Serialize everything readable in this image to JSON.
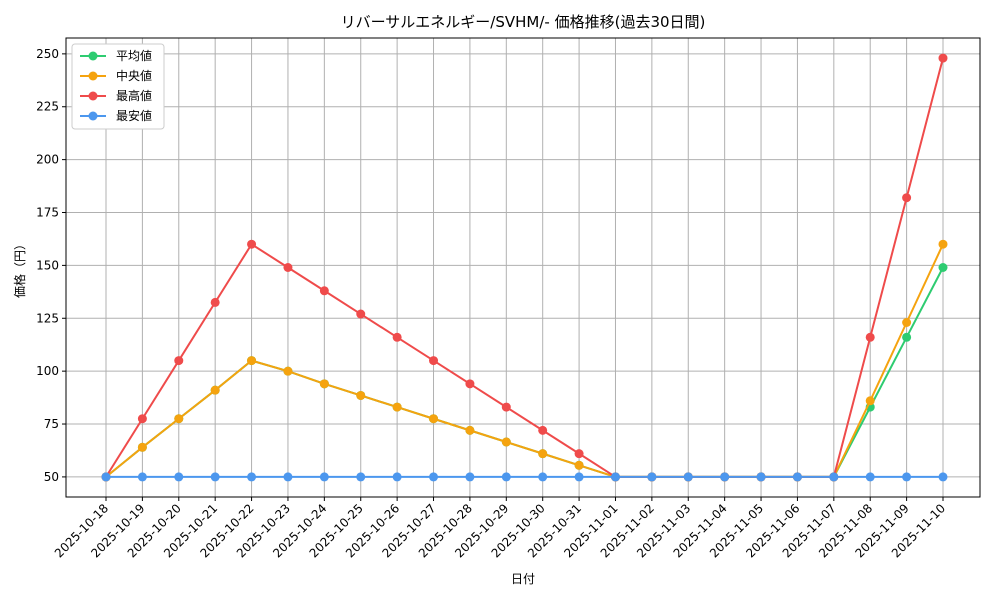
{
  "chart_data": {
    "type": "line",
    "title": "リバーサルエネルギー/SVHM/- 価格推移(過去30日間)",
    "x_label": "日付",
    "y_label": "価格（円）",
    "categories": [
      "2025-10-18",
      "2025-10-19",
      "2025-10-20",
      "2025-10-21",
      "2025-10-22",
      "2025-10-23",
      "2025-10-24",
      "2025-10-25",
      "2025-10-26",
      "2025-10-27",
      "2025-10-28",
      "2025-10-29",
      "2025-10-30",
      "2025-10-31",
      "2025-11-01",
      "2025-11-02",
      "2025-11-03",
      "2025-11-04",
      "2025-11-05",
      "2025-11-06",
      "2025-11-07",
      "2025-11-08",
      "2025-11-09",
      "2025-11-10"
    ],
    "series": [
      {
        "name": "平均値",
        "color": "#2ecc71",
        "values": [
          50,
          64,
          77.5,
          91,
          105,
          100,
          94,
          88.5,
          83,
          77.5,
          72,
          66.5,
          61,
          55.5,
          50,
          50,
          50,
          50,
          50,
          50,
          50,
          83,
          116,
          149
        ]
      },
      {
        "name": "中央値",
        "color": "#f5a30f",
        "values": [
          50,
          64,
          77.5,
          91,
          105,
          100,
          94,
          88.5,
          83,
          77.5,
          72,
          66.5,
          61,
          55.5,
          50,
          50,
          50,
          50,
          50,
          50,
          50,
          86,
          123,
          160
        ]
      },
      {
        "name": "最高値",
        "color": "#ef4b4b",
        "values": [
          50,
          77.5,
          105,
          132.5,
          160,
          149,
          138,
          127,
          116,
          105,
          94,
          83,
          72,
          61,
          50,
          50,
          50,
          50,
          50,
          50,
          50,
          116,
          182,
          248
        ]
      },
      {
        "name": "最安値",
        "color": "#4c97ee",
        "values": [
          50,
          50,
          50,
          50,
          50,
          50,
          50,
          50,
          50,
          50,
          50,
          50,
          50,
          50,
          50,
          50,
          50,
          50,
          50,
          50,
          50,
          50,
          50,
          50
        ]
      }
    ],
    "ylim": [
      40.5,
      257.5
    ],
    "yticks": [
      50,
      75,
      100,
      125,
      150,
      175,
      200,
      225,
      250
    ],
    "grid": true,
    "legend": "upper-left"
  }
}
